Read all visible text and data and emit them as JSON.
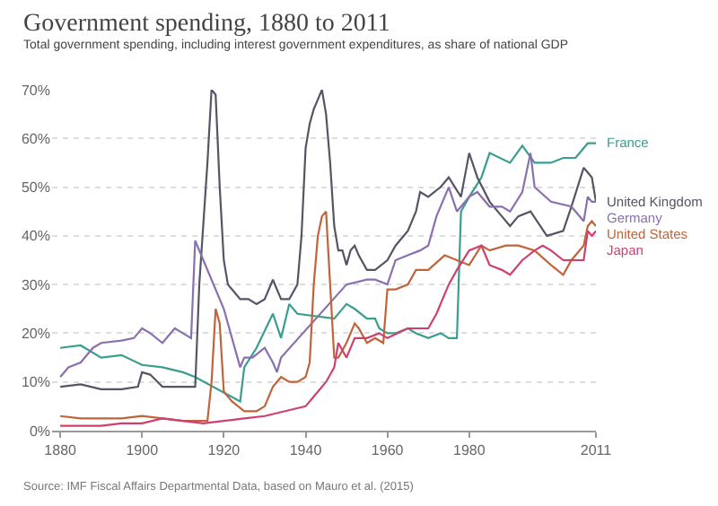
{
  "chart_data": {
    "type": "line",
    "title": "Government spending, 1880 to 2011",
    "subtitle": "Total government spending, including interest government expenditures, as share of national GDP",
    "annotations": [
      "Source: IMF Fiscal Affairs Departmental Data, based on Mauro et al. (2015)"
    ],
    "xlim": [
      1878,
      2011
    ],
    "xticks": [
      1880,
      1900,
      1920,
      1940,
      1960,
      1980,
      2011
    ],
    "ylim": [
      0,
      70
    ],
    "yticks": [
      {
        "value": 0,
        "label": "0%"
      },
      {
        "value": 10,
        "label": "10%"
      },
      {
        "value": 20,
        "label": "20%"
      },
      {
        "value": 30,
        "label": "30%"
      },
      {
        "value": 40,
        "label": "40%"
      },
      {
        "value": 50,
        "label": "50%"
      },
      {
        "value": 60,
        "label": "60%"
      },
      {
        "value": 70,
        "label": "70%"
      }
    ],
    "grid": "y",
    "legend": "right",
    "marker": "none",
    "line_style": "solid",
    "series": [
      {
        "name": "France",
        "color": "#3a9e8f",
        "x": [
          1880,
          1885,
          1890,
          1895,
          1900,
          1905,
          1910,
          1913,
          1924,
          1925,
          1928,
          1932,
          1934,
          1936,
          1938,
          1947,
          1950,
          1952,
          1955,
          1957,
          1958,
          1960,
          1962,
          1965,
          1967,
          1970,
          1973,
          1975,
          1977,
          1978,
          1980,
          1983,
          1985,
          1990,
          1993,
          1996,
          2000,
          2003,
          2006,
          2009,
          2011
        ],
        "values": [
          17,
          17.5,
          15,
          15.5,
          13.5,
          13,
          12,
          11,
          6,
          13,
          17,
          24,
          19,
          26,
          24,
          23,
          26,
          25,
          23,
          23,
          21,
          20,
          20,
          21,
          20,
          19,
          20,
          19,
          19,
          45,
          48,
          52,
          57,
          55,
          58.5,
          55,
          55,
          56,
          56,
          59,
          59
        ]
      },
      {
        "name": "United Kingdom",
        "color": "#555566",
        "x": [
          1880,
          1885,
          1890,
          1895,
          1899,
          1900,
          1902,
          1905,
          1910,
          1913,
          1914,
          1916,
          1917,
          1918,
          1919,
          1920,
          1921,
          1922,
          1924,
          1926,
          1928,
          1930,
          1932,
          1934,
          1936,
          1938,
          1939,
          1940,
          1941,
          1942,
          1943,
          1944,
          1945,
          1946,
          1947,
          1948,
          1949,
          1950,
          1951,
          1952,
          1953,
          1955,
          1957,
          1960,
          1962,
          1965,
          1967,
          1968,
          1970,
          1973,
          1975,
          1978,
          1980,
          1982,
          1985,
          1988,
          1990,
          1992,
          1995,
          1999,
          2003,
          2005,
          2008,
          2009,
          2010,
          2011
        ],
        "values": [
          9,
          9.5,
          8.5,
          8.5,
          9,
          12,
          11.5,
          9,
          9,
          9,
          30,
          55,
          70,
          69,
          50,
          35,
          30,
          29,
          27,
          27,
          26,
          27,
          31,
          27,
          27,
          30,
          40,
          58,
          63,
          66,
          68,
          70,
          65,
          55,
          42,
          37,
          37,
          34,
          37,
          38,
          36,
          33,
          33,
          35,
          38,
          41,
          45,
          49,
          48,
          50,
          52,
          48,
          57,
          52,
          47,
          44,
          42,
          44,
          45,
          40,
          41,
          46,
          54,
          53,
          52,
          47
        ]
      },
      {
        "name": "Germany",
        "color": "#8a70ae",
        "x": [
          1880,
          1882,
          1885,
          1888,
          1890,
          1895,
          1898,
          1900,
          1902,
          1905,
          1908,
          1910,
          1912,
          1913,
          1915,
          1920,
          1924,
          1925,
          1927,
          1930,
          1932,
          1933,
          1934,
          1950,
          1955,
          1957,
          1960,
          1962,
          1965,
          1968,
          1970,
          1972,
          1975,
          1977,
          1980,
          1982,
          1985,
          1988,
          1990,
          1993,
          1995,
          1996,
          2000,
          2005,
          2008,
          2009,
          2010,
          2011
        ],
        "values": [
          11,
          13,
          14,
          17,
          18,
          18.5,
          19,
          21,
          20,
          18,
          21,
          20,
          19,
          39,
          35,
          25,
          13,
          15,
          15,
          17,
          14,
          12,
          15,
          30,
          31,
          31,
          30,
          35,
          36,
          37,
          38,
          44,
          50,
          45,
          48,
          49,
          46,
          46,
          45,
          49,
          57,
          50,
          47,
          46,
          43,
          48,
          47,
          47
        ]
      },
      {
        "name": "United States",
        "color": "#c0643b",
        "x": [
          1880,
          1885,
          1890,
          1895,
          1900,
          1905,
          1910,
          1915,
          1916,
          1917,
          1918,
          1919,
          1920,
          1922,
          1925,
          1928,
          1930,
          1932,
          1934,
          1936,
          1938,
          1940,
          1941,
          1942,
          1943,
          1944,
          1945,
          1946,
          1947,
          1948,
          1950,
          1952,
          1953,
          1955,
          1957,
          1959,
          1960,
          1962,
          1965,
          1967,
          1970,
          1974,
          1980,
          1983,
          1985,
          1989,
          1992,
          1996,
          2000,
          2003,
          2005,
          2008,
          2009,
          2010,
          2011
        ],
        "values": [
          3,
          2.5,
          2.5,
          2.5,
          3,
          2.5,
          2,
          2,
          2,
          10,
          25,
          22,
          8,
          6,
          4,
          4,
          5,
          9,
          11,
          10,
          10,
          11,
          14,
          30,
          40,
          44,
          45,
          30,
          15,
          15,
          18,
          22,
          21,
          18,
          19,
          18,
          29,
          29,
          30,
          33,
          33,
          36,
          34,
          38,
          37,
          38,
          38,
          37,
          34,
          32,
          35,
          38,
          42,
          43,
          42
        ]
      },
      {
        "name": "Japan",
        "color": "#d0406f",
        "x": [
          1880,
          1885,
          1890,
          1895,
          1900,
          1905,
          1910,
          1915,
          1920,
          1925,
          1930,
          1935,
          1940,
          1942,
          1945,
          1947,
          1948,
          1950,
          1952,
          1955,
          1958,
          1960,
          1965,
          1970,
          1972,
          1975,
          1977,
          1980,
          1983,
          1985,
          1988,
          1990,
          1993,
          1996,
          1998,
          2000,
          2003,
          2005,
          2008,
          2009,
          2010,
          2011
        ],
        "values": [
          1,
          1,
          1,
          1.5,
          1.5,
          2.5,
          2,
          1.5,
          2,
          2.5,
          3,
          4,
          5,
          7,
          10,
          13,
          18,
          15,
          19,
          19,
          20,
          19,
          21,
          21,
          24,
          30,
          33,
          37,
          38,
          34,
          33,
          32,
          35,
          37,
          38,
          37,
          35,
          35,
          35,
          41,
          40,
          41
        ]
      }
    ]
  }
}
